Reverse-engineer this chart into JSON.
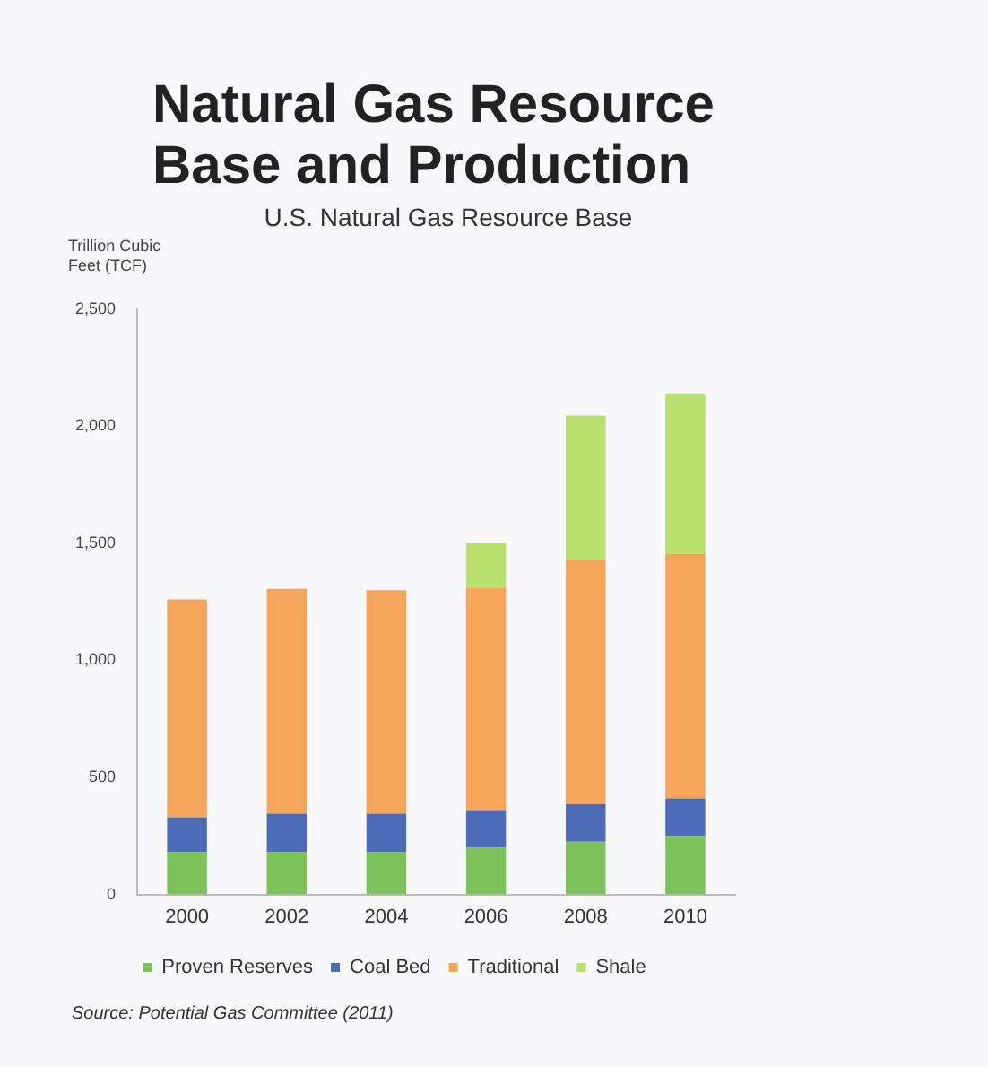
{
  "chart_data": {
    "type": "bar",
    "title": "Natural Gas Resource Base and Production",
    "subtitle": "U.S. Natural Gas Resource Base",
    "ylabel": "Trillion Cubic Feet (TCF)",
    "categories": [
      "2000",
      "2002",
      "2004",
      "2006",
      "2008",
      "2010"
    ],
    "stacked": true,
    "series": [
      {
        "name": "Proven Reserves",
        "color": "#7dc15a",
        "values": [
          180,
          180,
          180,
          200,
          225,
          250
        ]
      },
      {
        "name": "Coal Bed",
        "color": "#4e6cb5",
        "values": [
          150,
          165,
          165,
          160,
          160,
          160
        ]
      },
      {
        "name": "Traditional",
        "color": "#f5a45c",
        "values": [
          930,
          960,
          955,
          950,
          1045,
          1045
        ]
      },
      {
        "name": "Shale",
        "color": "#b9df6e",
        "values": [
          0,
          0,
          0,
          190,
          615,
          685
        ]
      }
    ],
    "ylim": [
      0,
      2500
    ],
    "yticks": [
      0,
      {
        "value": 500,
        "label": "500"
      },
      {
        "value": 1000,
        "label": "1,000"
      },
      {
        "value": 1500,
        "label": "1,500"
      },
      {
        "value": 2000,
        "label": "2,000"
      },
      {
        "value": 2500,
        "label": "2,500"
      }
    ],
    "grid": false,
    "legend": "bottom",
    "annotations": [
      "Source: Potential Gas Committee (2011)"
    ]
  }
}
